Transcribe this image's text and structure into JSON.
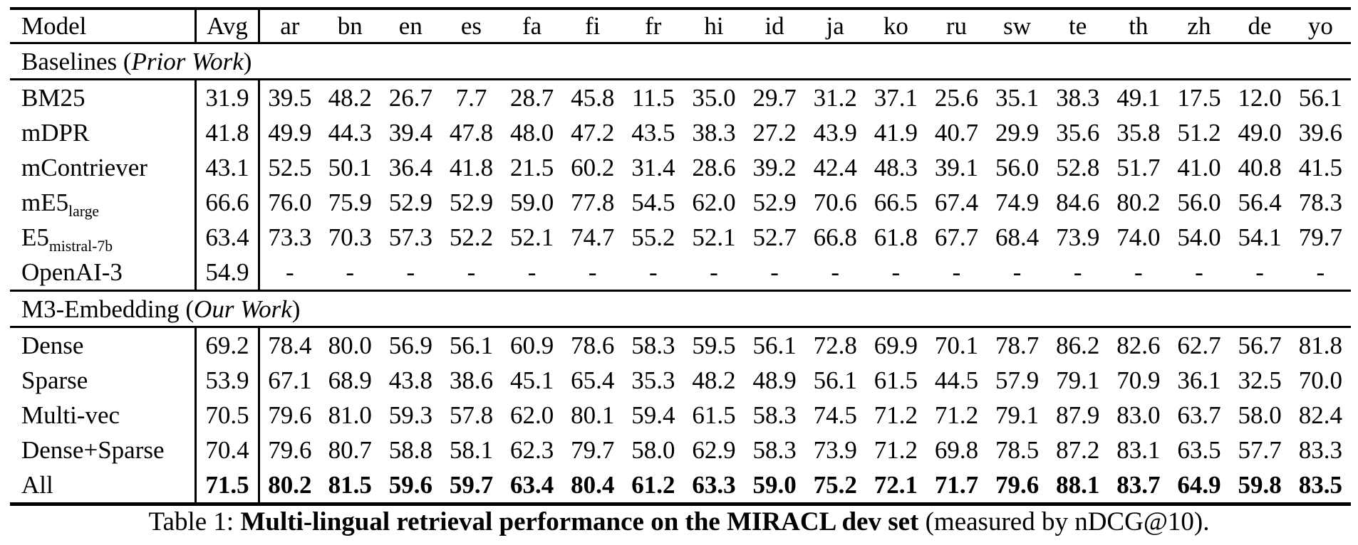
{
  "colors": {
    "background": "#ffffff",
    "text": "#000000",
    "rule": "#000000"
  },
  "caption": {
    "prefix": "Table 1: ",
    "bold": "Multi-lingual retrieval performance on the MIRACL dev set",
    "suffix": " (measured by nDCG@10)."
  },
  "table": {
    "columns": [
      "Model",
      "Avg",
      "ar",
      "bn",
      "en",
      "es",
      "fa",
      "fi",
      "fr",
      "hi",
      "id",
      "ja",
      "ko",
      "ru",
      "sw",
      "te",
      "th",
      "zh",
      "de",
      "yo"
    ],
    "sections": [
      {
        "title_prefix": "Baselines (",
        "title_italic": "Prior Work",
        "title_suffix": ")",
        "rows": [
          {
            "model": "BM25",
            "model_sub": "",
            "avg": "31.9",
            "bold": false,
            "values": [
              "39.5",
              "48.2",
              "26.7",
              "7.7",
              "28.7",
              "45.8",
              "11.5",
              "35.0",
              "29.7",
              "31.2",
              "37.1",
              "25.6",
              "35.1",
              "38.3",
              "49.1",
              "17.5",
              "12.0",
              "56.1"
            ]
          },
          {
            "model": "mDPR",
            "model_sub": "",
            "avg": "41.8",
            "bold": false,
            "values": [
              "49.9",
              "44.3",
              "39.4",
              "47.8",
              "48.0",
              "47.2",
              "43.5",
              "38.3",
              "27.2",
              "43.9",
              "41.9",
              "40.7",
              "29.9",
              "35.6",
              "35.8",
              "51.2",
              "49.0",
              "39.6"
            ]
          },
          {
            "model": "mContriever",
            "model_sub": "",
            "avg": "43.1",
            "bold": false,
            "values": [
              "52.5",
              "50.1",
              "36.4",
              "41.8",
              "21.5",
              "60.2",
              "31.4",
              "28.6",
              "39.2",
              "42.4",
              "48.3",
              "39.1",
              "56.0",
              "52.8",
              "51.7",
              "41.0",
              "40.8",
              "41.5"
            ]
          },
          {
            "model": "mE5",
            "model_sub": "large",
            "avg": "66.6",
            "bold": false,
            "values": [
              "76.0",
              "75.9",
              "52.9",
              "52.9",
              "59.0",
              "77.8",
              "54.5",
              "62.0",
              "52.9",
              "70.6",
              "66.5",
              "67.4",
              "74.9",
              "84.6",
              "80.2",
              "56.0",
              "56.4",
              "78.3"
            ]
          },
          {
            "model": "E5",
            "model_sub": "mistral-7b",
            "avg": "63.4",
            "bold": false,
            "values": [
              "73.3",
              "70.3",
              "57.3",
              "52.2",
              "52.1",
              "74.7",
              "55.2",
              "52.1",
              "52.7",
              "66.8",
              "61.8",
              "67.7",
              "68.4",
              "73.9",
              "74.0",
              "54.0",
              "54.1",
              "79.7"
            ]
          },
          {
            "model": "OpenAI-3",
            "model_sub": "",
            "avg": "54.9",
            "bold": false,
            "values": [
              "-",
              "-",
              "-",
              "-",
              "-",
              "-",
              "-",
              "-",
              "-",
              "-",
              "-",
              "-",
              "-",
              "-",
              "-",
              "-",
              "-",
              "-"
            ]
          }
        ]
      },
      {
        "title_prefix": "M3-Embedding (",
        "title_italic": "Our Work",
        "title_suffix": ")",
        "rows": [
          {
            "model": "Dense",
            "model_sub": "",
            "avg": "69.2",
            "bold": false,
            "values": [
              "78.4",
              "80.0",
              "56.9",
              "56.1",
              "60.9",
              "78.6",
              "58.3",
              "59.5",
              "56.1",
              "72.8",
              "69.9",
              "70.1",
              "78.7",
              "86.2",
              "82.6",
              "62.7",
              "56.7",
              "81.8"
            ]
          },
          {
            "model": "Sparse",
            "model_sub": "",
            "avg": "53.9",
            "bold": false,
            "values": [
              "67.1",
              "68.9",
              "43.8",
              "38.6",
              "45.1",
              "65.4",
              "35.3",
              "48.2",
              "48.9",
              "56.1",
              "61.5",
              "44.5",
              "57.9",
              "79.1",
              "70.9",
              "36.1",
              "32.5",
              "70.0"
            ]
          },
          {
            "model": "Multi-vec",
            "model_sub": "",
            "avg": "70.5",
            "bold": false,
            "values": [
              "79.6",
              "81.0",
              "59.3",
              "57.8",
              "62.0",
              "80.1",
              "59.4",
              "61.5",
              "58.3",
              "74.5",
              "71.2",
              "71.2",
              "79.1",
              "87.9",
              "83.0",
              "63.7",
              "58.0",
              "82.4"
            ]
          },
          {
            "model": "Dense+Sparse",
            "model_sub": "",
            "avg": "70.4",
            "bold": false,
            "values": [
              "79.6",
              "80.7",
              "58.8",
              "58.1",
              "62.3",
              "79.7",
              "58.0",
              "62.9",
              "58.3",
              "73.9",
              "71.2",
              "69.8",
              "78.5",
              "87.2",
              "83.1",
              "63.5",
              "57.7",
              "83.3"
            ]
          },
          {
            "model": "All",
            "model_sub": "",
            "avg": "71.5",
            "bold": true,
            "values": [
              "80.2",
              "81.5",
              "59.6",
              "59.7",
              "63.4",
              "80.4",
              "61.2",
              "63.3",
              "59.0",
              "75.2",
              "72.1",
              "71.7",
              "79.6",
              "88.1",
              "83.7",
              "64.9",
              "59.8",
              "83.5"
            ]
          }
        ]
      }
    ]
  }
}
